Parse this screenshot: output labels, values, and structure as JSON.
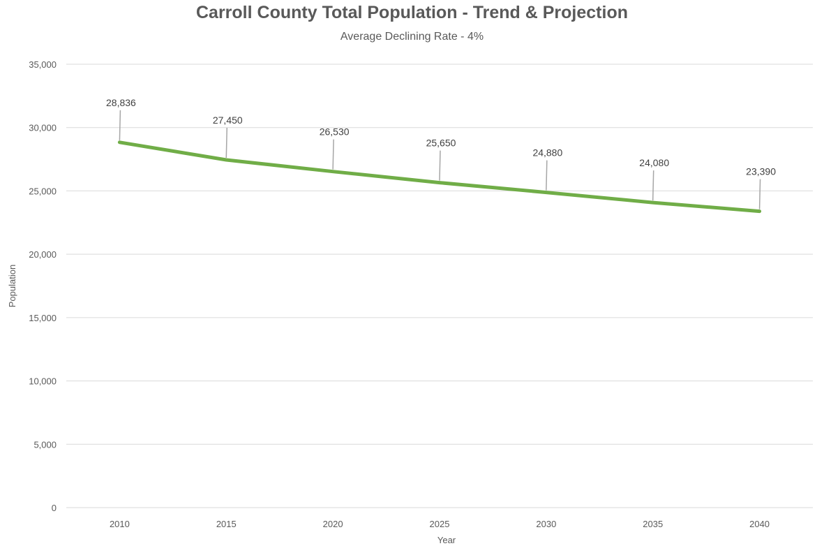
{
  "chart_data": {
    "type": "line",
    "title": "Carroll County Total Population - Trend & Projection",
    "subtitle": "Average Declining Rate - 4%",
    "xlabel": "Year",
    "ylabel": "Population",
    "categories": [
      "2010",
      "2015",
      "2020",
      "2025",
      "2030",
      "2035",
      "2040"
    ],
    "series": [
      {
        "values": [
          28836,
          27450,
          26530,
          25650,
          24880,
          24080,
          23390
        ]
      }
    ],
    "data_labels": [
      "28,836",
      "27,450",
      "26,530",
      "25,650",
      "24,880",
      "24,080",
      "23,390"
    ],
    "y_ticks": [
      0,
      5000,
      10000,
      15000,
      20000,
      25000,
      30000,
      35000
    ],
    "y_tick_labels": [
      "0",
      "5,000",
      "10,000",
      "15,000",
      "20,000",
      "25,000",
      "30,000",
      "35,000"
    ],
    "ylim": [
      0,
      35000
    ],
    "grid": true,
    "legend": "none",
    "colors": {
      "line": "#70ad47",
      "grid": "#d9d9d9",
      "text": "#595959",
      "leader": "#a6a6a6"
    }
  }
}
